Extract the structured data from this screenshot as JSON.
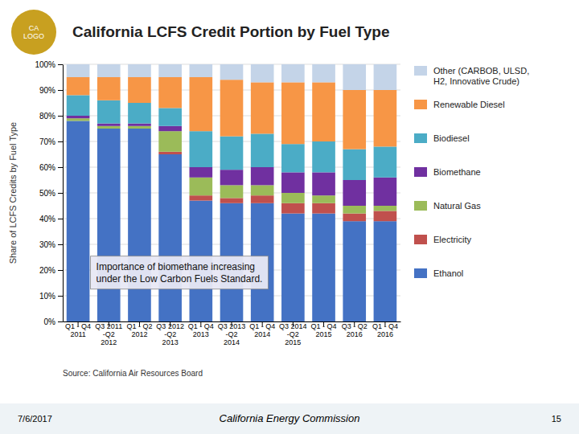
{
  "chart_data": {
    "type": "bar",
    "stacked": true,
    "grid": true,
    "title": "California LCFS Credit Portion by Fuel Type",
    "ylabel": "Share of LCFS Credits by Fuel Type",
    "source": "Source: California Air Resources Board",
    "annotation": "Importance of biomethane increasing\nunder the Low Carbon Fuels Standard.",
    "footer": {
      "left": "7/6/2017",
      "center": "California Energy Commission",
      "right": "15"
    },
    "logo_text": "CA\nLOGO",
    "categories": [
      "Q1 - Q4\n2011",
      "Q3 2011\n-Q2\n2012",
      "Q1 - Q2\n2012",
      "Q3 2012\n-Q2\n2013",
      "Q1 - Q4\n2013",
      "Q3 2013\n-Q2\n2014",
      "Q1 - Q4\n2014",
      "Q3 2014\n-Q2\n2015",
      "Q1 - Q4\n2015",
      "Q3 - Q2\n2016",
      "Q1 - Q4\n2016"
    ],
    "series": [
      {
        "name": "Ethanol",
        "color": "#4472C4",
        "values": [
          0.78,
          0.75,
          0.75,
          0.65,
          0.47,
          0.46,
          0.46,
          0.42,
          0.42,
          0.39,
          0.39
        ]
      },
      {
        "name": "Electricity",
        "color": "#C0504D",
        "values": [
          0.0,
          0.0,
          0.0,
          0.01,
          0.02,
          0.02,
          0.03,
          0.04,
          0.04,
          0.03,
          0.04
        ]
      },
      {
        "name": "Natural Gas",
        "color": "#9BBB59",
        "values": [
          0.01,
          0.01,
          0.01,
          0.08,
          0.07,
          0.05,
          0.04,
          0.04,
          0.03,
          0.03,
          0.02
        ]
      },
      {
        "name": "Biomethane",
        "color": "#7030A0",
        "values": [
          0.01,
          0.01,
          0.01,
          0.02,
          0.04,
          0.06,
          0.07,
          0.08,
          0.09,
          0.1,
          0.11
        ]
      },
      {
        "name": "Biodiesel",
        "color": "#4BACC6",
        "values": [
          0.08,
          0.09,
          0.08,
          0.07,
          0.14,
          0.13,
          0.13,
          0.11,
          0.12,
          0.12,
          0.12
        ]
      },
      {
        "name": "Renewable Diesel",
        "color": "#F79646",
        "values": [
          0.07,
          0.09,
          0.1,
          0.12,
          0.21,
          0.22,
          0.2,
          0.24,
          0.23,
          0.23,
          0.22
        ]
      },
      {
        "name": "Other (CARBOB, ULSD,\nH2, Innovative Crude)",
        "color": "#C4D4E8",
        "values": [
          0.05,
          0.05,
          0.05,
          0.05,
          0.05,
          0.06,
          0.07,
          0.07,
          0.07,
          0.1,
          0.1
        ]
      }
    ],
    "ylim": [
      0,
      1.0
    ],
    "yticks": [
      {
        "value": 0.0,
        "label": "0%"
      },
      {
        "value": 0.1,
        "label": "10%"
      },
      {
        "value": 0.2,
        "label": "20%"
      },
      {
        "value": 0.3,
        "label": "30%"
      },
      {
        "value": 0.4,
        "label": "40%"
      },
      {
        "value": 0.5,
        "label": "50%"
      },
      {
        "value": 0.6,
        "label": "60%"
      },
      {
        "value": 0.7,
        "label": "70%"
      },
      {
        "value": 0.8,
        "label": "80%"
      },
      {
        "value": 0.9,
        "label": "90%"
      },
      {
        "value": 1.0,
        "label": "100%"
      }
    ]
  }
}
